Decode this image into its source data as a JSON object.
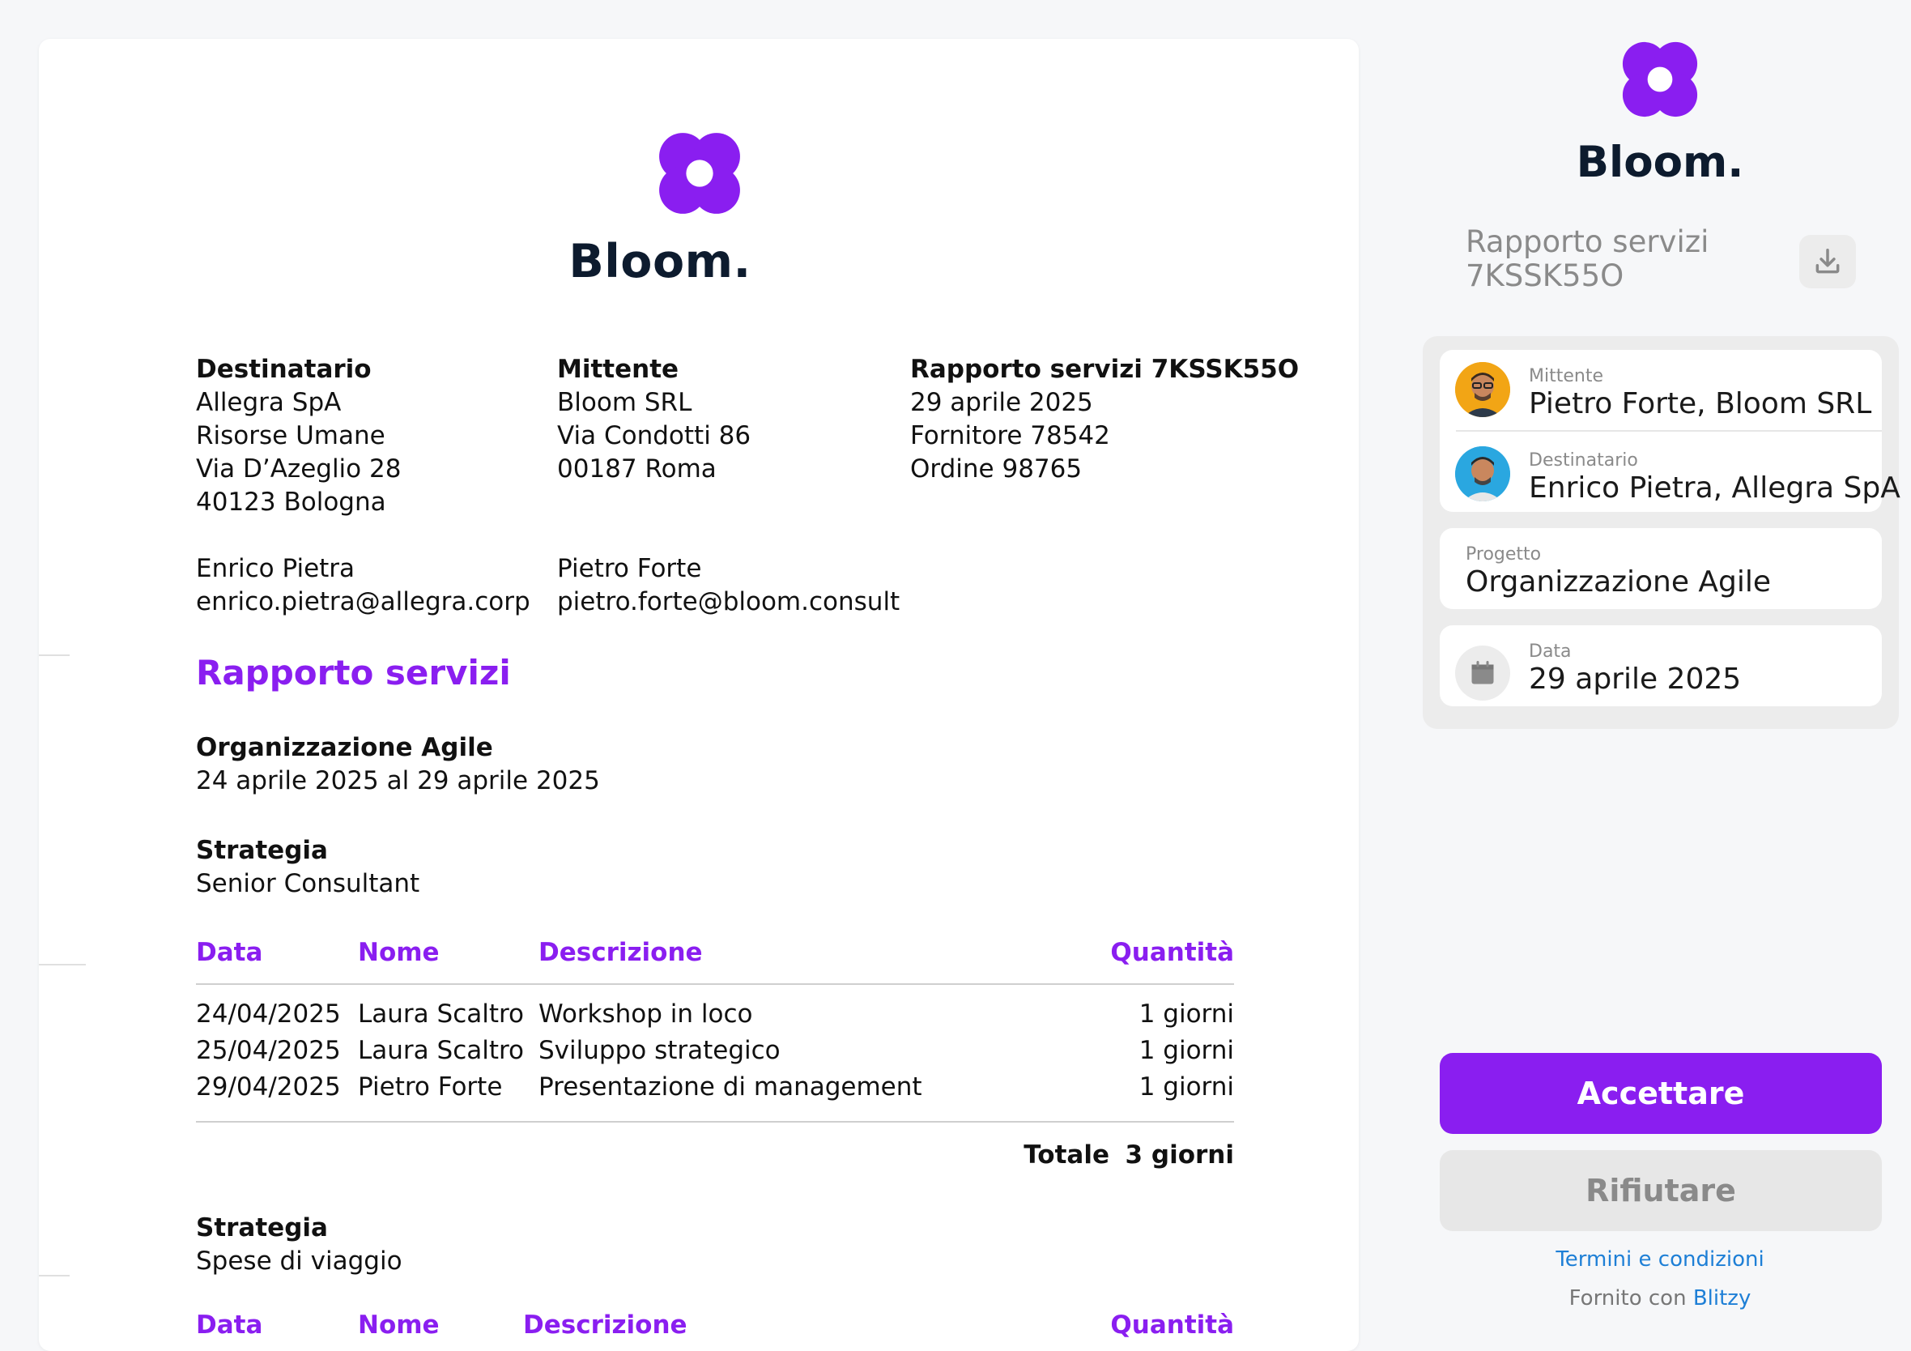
{
  "brand": {
    "name": "Bloom.",
    "color": "#8a1ef0"
  },
  "document": {
    "recipient": {
      "heading": "Destinatario",
      "lines": [
        "Allegra SpA",
        "Risorse Umane",
        "Via D’Azeglio 28",
        "40123 Bologna"
      ],
      "contact_name": "Enrico Pietra",
      "contact_email": "enrico.pietra@allegra.corp"
    },
    "sender": {
      "heading": "Mittente",
      "lines": [
        "Bloom SRL",
        "Via Condotti 86",
        "00187 Roma"
      ],
      "contact_name": "Pietro Forte",
      "contact_email": "pietro.forte@bloom.consult"
    },
    "report": {
      "heading": "Rapporto servizi 7KSSK55O",
      "lines": [
        "29 aprile 2025",
        "Fornitore 78542",
        "Ordine 98765"
      ]
    },
    "section_title": "Rapporto servizi",
    "project": {
      "title": "Organizzazione Agile",
      "period": "24 aprile 2025 al 29 aprile 2025"
    },
    "strategy1": {
      "title": "Strategia",
      "subtitle": "Senior Consultant"
    },
    "table": {
      "headers": {
        "date": "Data",
        "name": "Nome",
        "description": "Descrizione",
        "quantity": "Quantità"
      },
      "rows": [
        {
          "date": "24/04/2025",
          "name": "Laura Scaltro",
          "description": "Workshop in loco",
          "quantity": "1 giorni"
        },
        {
          "date": "25/04/2025",
          "name": "Laura Scaltro",
          "description": "Sviluppo strategico",
          "quantity": "1 giorni"
        },
        {
          "date": "29/04/2025",
          "name": "Pietro Forte",
          "description": "Presentazione di management",
          "quantity": "1 giorni"
        }
      ],
      "total_label": "Totale",
      "total_value": "3 giorni"
    },
    "strategy2": {
      "title": "Strategia",
      "subtitle": "Spese di viaggio"
    },
    "table2_headers": {
      "date": "Data",
      "name": "Nome",
      "description": "Descrizione",
      "quantity": "Quantità"
    }
  },
  "sidebar": {
    "title_line1": "Rapporto servizi",
    "title_line2": "7KSSK55O",
    "download_icon": "download-icon",
    "sender": {
      "label": "Mittente",
      "value": "Pietro Forte, Bloom SRL"
    },
    "recipient": {
      "label": "Destinatario",
      "value": "Enrico Pietra, Allegra SpA"
    },
    "project": {
      "label": "Progetto",
      "value": "Organizzazione Agile"
    },
    "date": {
      "label": "Data",
      "value": "29 aprile 2025"
    },
    "accept_label": "Accettare",
    "reject_label": "Rifiutare",
    "terms_label": "Termini e condizioni",
    "powered_prefix": "Fornito con",
    "powered_link": "Blitzy"
  }
}
